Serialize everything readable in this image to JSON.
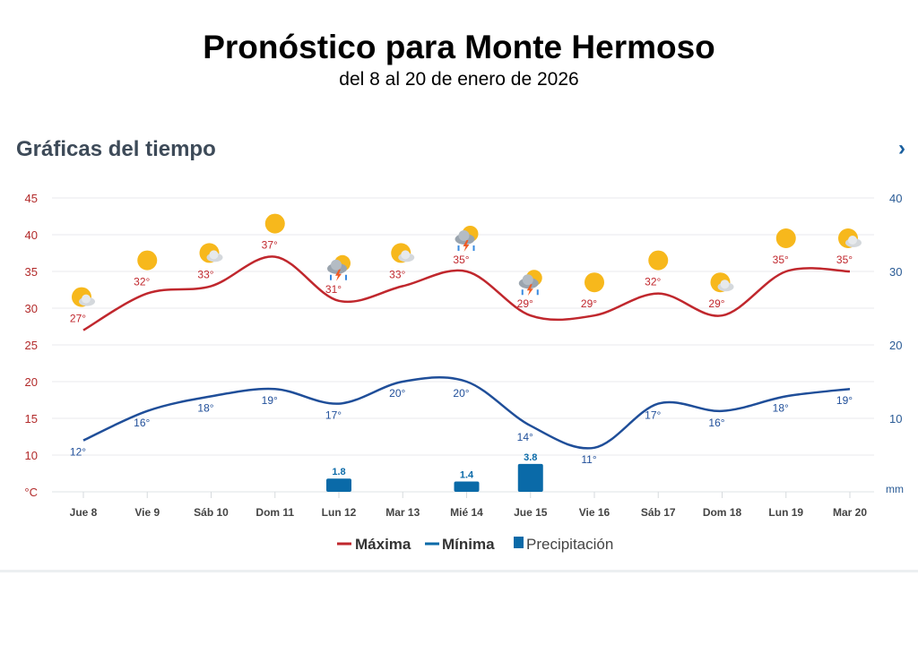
{
  "header": {
    "title": "Pronóstico para Monte Hermoso",
    "subtitle": "del 8 al 20 de enero de 2026",
    "section_title": "Gráficas del tiempo",
    "next_icon": "chevron-right-icon"
  },
  "colors": {
    "max": "#c0272d",
    "min": "#1f4e99",
    "precip": "#0a6aa8",
    "left_axis": "#b22a2a",
    "right_axis": "#2a5b95"
  },
  "chart_data": {
    "type": "line",
    "categories": [
      "Jue 8",
      "Vie 9",
      "Sáb 10",
      "Dom 11",
      "Lun 12",
      "Mar 13",
      "Mié 14",
      "Jue 15",
      "Vie 16",
      "Sáb 17",
      "Dom 18",
      "Lun 19",
      "Mar 20"
    ],
    "icons": [
      "sun-cloud",
      "sun",
      "sun-cloud",
      "sun",
      "storm",
      "sun-cloud",
      "storm",
      "storm",
      "sun",
      "sun",
      "sun-cloud",
      "sun",
      "sun-cloud"
    ],
    "series": [
      {
        "name": "Máxima",
        "axis": "left",
        "values": [
          27,
          32,
          33,
          37,
          31,
          33,
          35,
          29,
          29,
          32,
          29,
          35,
          35
        ]
      },
      {
        "name": "Mínima",
        "axis": "left",
        "values": [
          12,
          16,
          18,
          19,
          17,
          20,
          20,
          14,
          11,
          17,
          16,
          18,
          19
        ]
      },
      {
        "name": "Precipitación",
        "axis": "right",
        "type": "bar",
        "values": [
          null,
          null,
          null,
          null,
          1.8,
          null,
          1.4,
          3.8,
          null,
          null,
          null,
          null,
          null
        ]
      }
    ],
    "left_axis": {
      "unit": "°C",
      "ticks": [
        10,
        15,
        20,
        25,
        30,
        35,
        40,
        45
      ],
      "range": [
        5,
        45
      ]
    },
    "right_axis": {
      "unit": "mm",
      "ticks": [
        10,
        20,
        30,
        40
      ],
      "range": [
        0,
        40
      ]
    },
    "legend": {
      "position": "bottom",
      "items": [
        "Máxima",
        "Mínima",
        "Precipitación"
      ]
    },
    "grid": true
  }
}
